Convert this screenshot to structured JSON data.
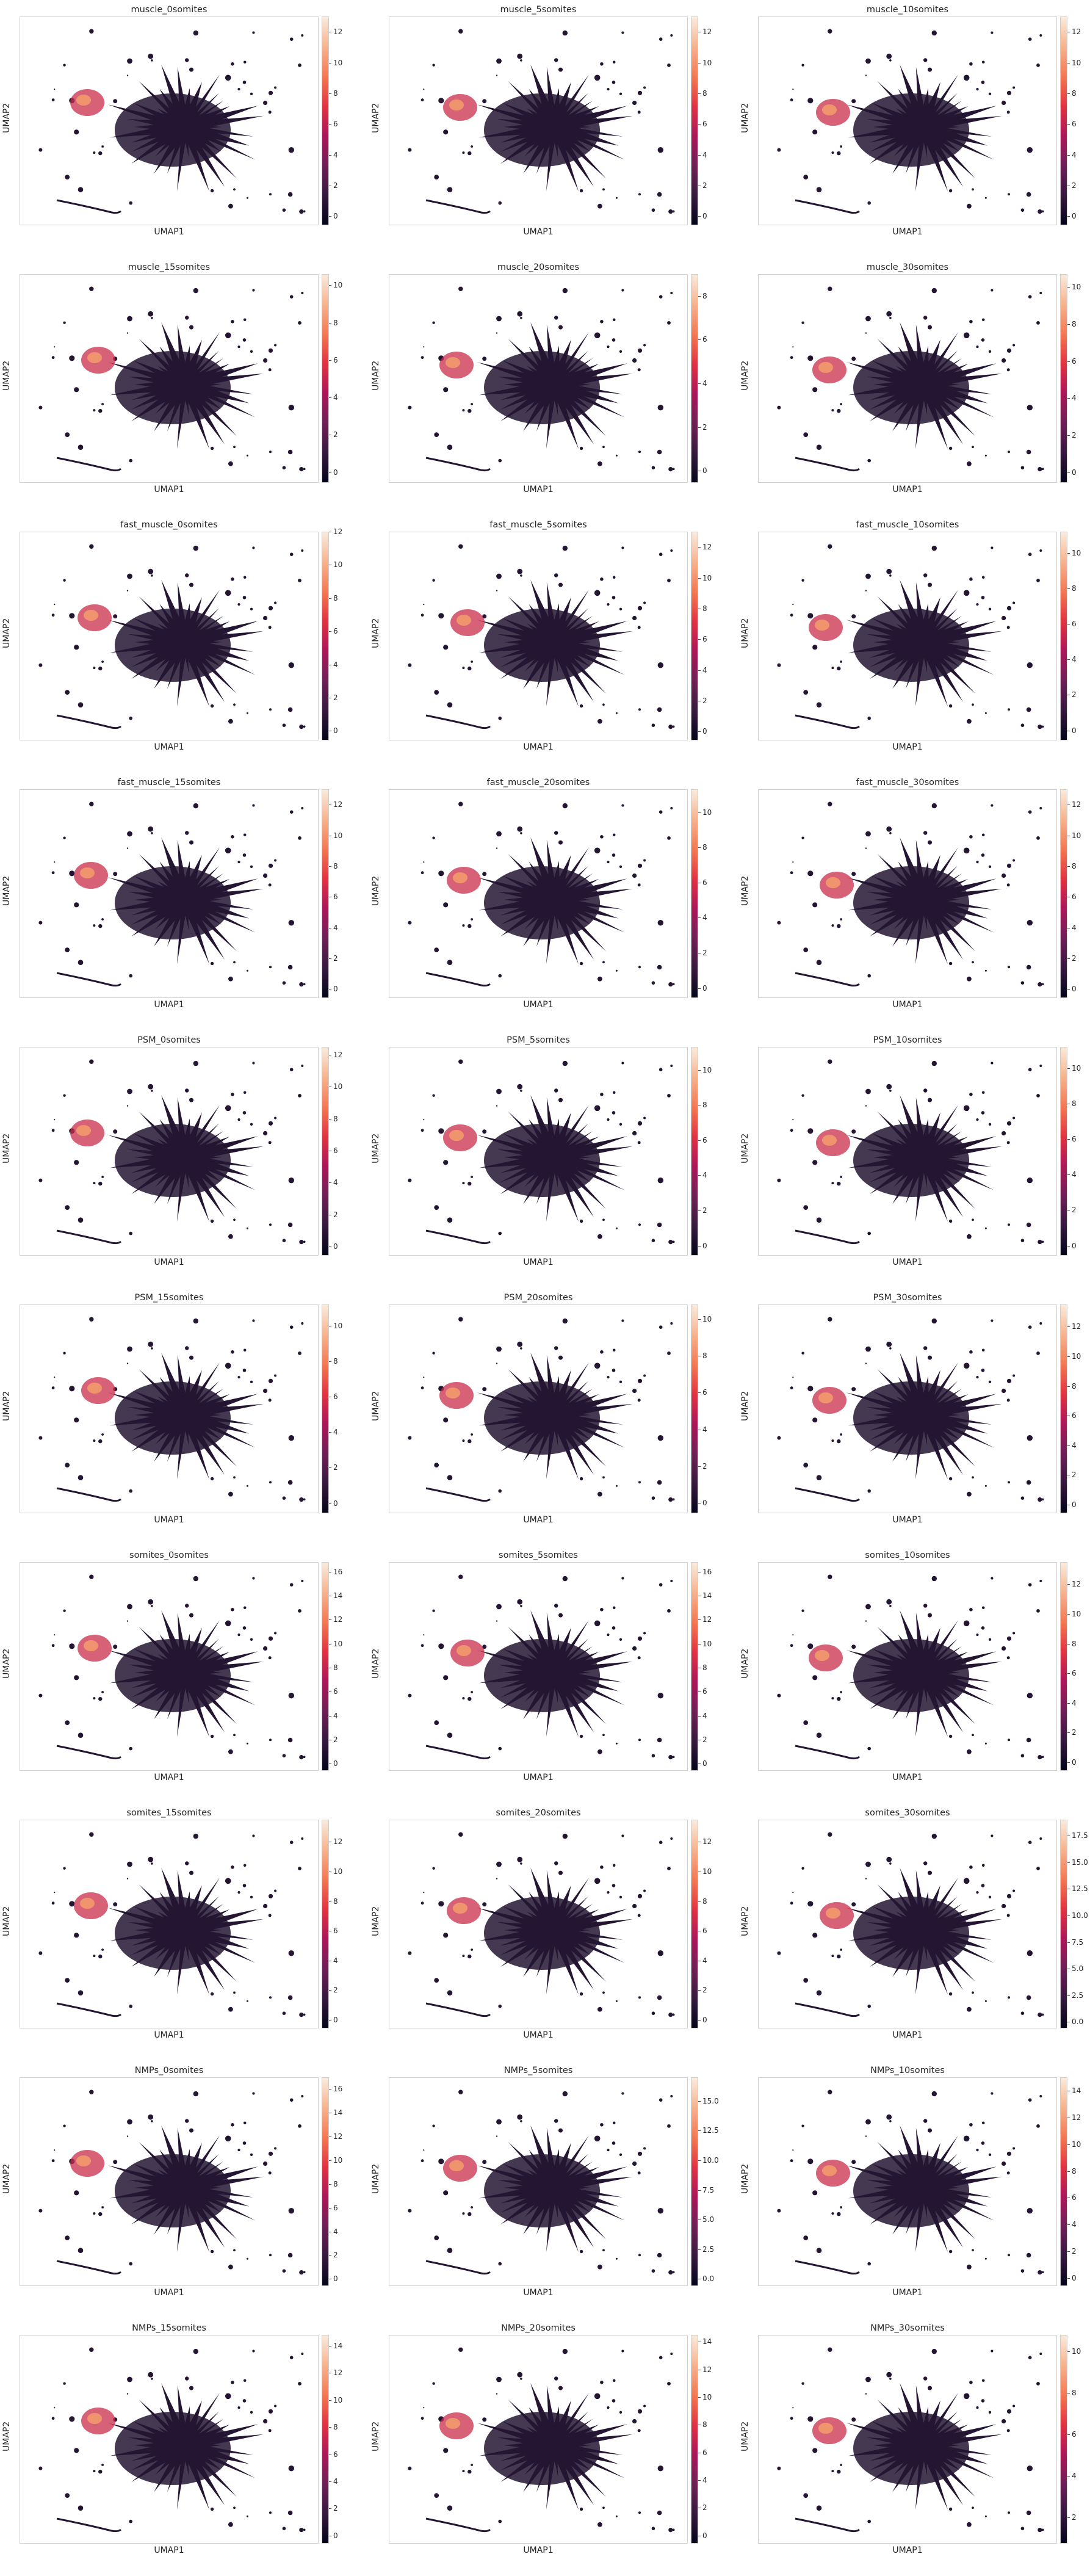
{
  "colors": {
    "cmap": [
      "#03051a",
      "#36193e",
      "#701f57",
      "#ad1759",
      "#e13342",
      "#f37651",
      "#f6b48f",
      "#faebdd"
    ],
    "background": "#ffffff",
    "frame": "#cfcfcf"
  },
  "chart_data": [
    {
      "type": "scatter",
      "title": "muscle_0somites",
      "xlabel": "UMAP1",
      "ylabel": "UMAP2",
      "colorbar_ticks": [
        "0",
        "2",
        "4",
        "6",
        "8",
        "10",
        "12"
      ],
      "vmax": 13,
      "grid": false
    },
    {
      "type": "scatter",
      "title": "muscle_5somites",
      "xlabel": "UMAP1",
      "ylabel": "UMAP2",
      "colorbar_ticks": [
        "0",
        "2",
        "4",
        "6",
        "8",
        "10",
        "12"
      ],
      "vmax": 13,
      "grid": false
    },
    {
      "type": "scatter",
      "title": "muscle_10somites",
      "xlabel": "UMAP1",
      "ylabel": "UMAP2",
      "colorbar_ticks": [
        "0",
        "2",
        "4",
        "6",
        "8",
        "10",
        "12"
      ],
      "vmax": 13,
      "grid": false
    },
    {
      "type": "scatter",
      "title": "muscle_15somites",
      "xlabel": "UMAP1",
      "ylabel": "UMAP2",
      "colorbar_ticks": [
        "0",
        "2",
        "4",
        "6",
        "8",
        "10"
      ],
      "vmax": 10.6,
      "grid": false
    },
    {
      "type": "scatter",
      "title": "muscle_20somites",
      "xlabel": "UMAP1",
      "ylabel": "UMAP2",
      "colorbar_ticks": [
        "0",
        "2",
        "4",
        "6",
        "8"
      ],
      "vmax": 9,
      "grid": false
    },
    {
      "type": "scatter",
      "title": "muscle_30somites",
      "xlabel": "UMAP1",
      "ylabel": "UMAP2",
      "colorbar_ticks": [
        "0",
        "2",
        "4",
        "6",
        "8",
        "10"
      ],
      "vmax": 10.7,
      "grid": false
    },
    {
      "type": "scatter",
      "title": "fast_muscle_0somites",
      "xlabel": "UMAP1",
      "ylabel": "UMAP2",
      "colorbar_ticks": [
        "0",
        "2",
        "4",
        "6",
        "8",
        "10",
        "12"
      ],
      "vmax": 12,
      "grid": false
    },
    {
      "type": "scatter",
      "title": "fast_muscle_5somites",
      "xlabel": "UMAP1",
      "ylabel": "UMAP2",
      "colorbar_ticks": [
        "0",
        "2",
        "4",
        "6",
        "8",
        "10",
        "12"
      ],
      "vmax": 13,
      "grid": false
    },
    {
      "type": "scatter",
      "title": "fast_muscle_10somites",
      "xlabel": "UMAP1",
      "ylabel": "UMAP2",
      "colorbar_ticks": [
        "0",
        "2",
        "4",
        "6",
        "8",
        "10"
      ],
      "vmax": 11.2,
      "grid": false
    },
    {
      "type": "scatter",
      "title": "fast_muscle_15somites",
      "xlabel": "UMAP1",
      "ylabel": "UMAP2",
      "colorbar_ticks": [
        "0",
        "2",
        "4",
        "6",
        "8",
        "10",
        "12"
      ],
      "vmax": 13,
      "grid": false
    },
    {
      "type": "scatter",
      "title": "fast_muscle_20somites",
      "xlabel": "UMAP1",
      "ylabel": "UMAP2",
      "colorbar_ticks": [
        "0",
        "2",
        "4",
        "6",
        "8",
        "10"
      ],
      "vmax": 11.3,
      "grid": false
    },
    {
      "type": "scatter",
      "title": "fast_muscle_30somites",
      "xlabel": "UMAP1",
      "ylabel": "UMAP2",
      "colorbar_ticks": [
        "0",
        "2",
        "4",
        "6",
        "8",
        "10",
        "12"
      ],
      "vmax": 13,
      "grid": false
    },
    {
      "type": "scatter",
      "title": "PSM_0somites",
      "xlabel": "UMAP1",
      "ylabel": "UMAP2",
      "colorbar_ticks": [
        "0",
        "2",
        "4",
        "6",
        "8",
        "10",
        "12"
      ],
      "vmax": 12.5,
      "grid": false
    },
    {
      "type": "scatter",
      "title": "PSM_5somites",
      "xlabel": "UMAP1",
      "ylabel": "UMAP2",
      "colorbar_ticks": [
        "0",
        "2",
        "4",
        "6",
        "8",
        "10"
      ],
      "vmax": 11.3,
      "grid": false
    },
    {
      "type": "scatter",
      "title": "PSM_10somites",
      "xlabel": "UMAP1",
      "ylabel": "UMAP2",
      "colorbar_ticks": [
        "0",
        "2",
        "4",
        "6",
        "8",
        "10"
      ],
      "vmax": 11.2,
      "grid": false
    },
    {
      "type": "scatter",
      "title": "PSM_15somites",
      "xlabel": "UMAP1",
      "ylabel": "UMAP2",
      "colorbar_ticks": [
        "0",
        "2",
        "4",
        "6",
        "8",
        "10"
      ],
      "vmax": 11.2,
      "grid": false
    },
    {
      "type": "scatter",
      "title": "PSM_20somites",
      "xlabel": "UMAP1",
      "ylabel": "UMAP2",
      "colorbar_ticks": [
        "0",
        "2",
        "4",
        "6",
        "8",
        "10"
      ],
      "vmax": 10.8,
      "grid": false
    },
    {
      "type": "scatter",
      "title": "PSM_30somites",
      "xlabel": "UMAP1",
      "ylabel": "UMAP2",
      "colorbar_ticks": [
        "0",
        "2",
        "4",
        "6",
        "8",
        "10",
        "12"
      ],
      "vmax": 13.5,
      "grid": false
    },
    {
      "type": "scatter",
      "title": "somites_0somites",
      "xlabel": "UMAP1",
      "ylabel": "UMAP2",
      "colorbar_ticks": [
        "0",
        "2",
        "4",
        "6",
        "8",
        "10",
        "12",
        "14",
        "16"
      ],
      "vmax": 16.8,
      "grid": false
    },
    {
      "type": "scatter",
      "title": "somites_5somites",
      "xlabel": "UMAP1",
      "ylabel": "UMAP2",
      "colorbar_ticks": [
        "0",
        "2",
        "4",
        "6",
        "8",
        "10",
        "12",
        "14",
        "16"
      ],
      "vmax": 16.8,
      "grid": false
    },
    {
      "type": "scatter",
      "title": "somites_10somites",
      "xlabel": "UMAP1",
      "ylabel": "UMAP2",
      "colorbar_ticks": [
        "0",
        "2",
        "4",
        "6",
        "8",
        "10",
        "12"
      ],
      "vmax": 13.5,
      "grid": false
    },
    {
      "type": "scatter",
      "title": "somites_15somites",
      "xlabel": "UMAP1",
      "ylabel": "UMAP2",
      "colorbar_ticks": [
        "0",
        "2",
        "4",
        "6",
        "8",
        "10",
        "12"
      ],
      "vmax": 13.5,
      "grid": false
    },
    {
      "type": "scatter",
      "title": "somites_20somites",
      "xlabel": "UMAP1",
      "ylabel": "UMAP2",
      "colorbar_ticks": [
        "0",
        "2",
        "4",
        "6",
        "8",
        "10",
        "12"
      ],
      "vmax": 13.5,
      "grid": false
    },
    {
      "type": "scatter",
      "title": "somites_30somites",
      "xlabel": "UMAP1",
      "ylabel": "UMAP2",
      "colorbar_ticks": [
        "0.0",
        "2.5",
        "5.0",
        "7.5",
        "10.0",
        "12.5",
        "15.0",
        "17.5"
      ],
      "vmax": 19,
      "grid": false
    },
    {
      "type": "scatter",
      "title": "NMPs_0somites",
      "xlabel": "UMAP1",
      "ylabel": "UMAP2",
      "colorbar_ticks": [
        "0",
        "2",
        "4",
        "6",
        "8",
        "10",
        "12",
        "14",
        "16"
      ],
      "vmax": 17,
      "grid": false
    },
    {
      "type": "scatter",
      "title": "NMPs_5somites",
      "xlabel": "UMAP1",
      "ylabel": "UMAP2",
      "colorbar_ticks": [
        "0.0",
        "2.5",
        "5.0",
        "7.5",
        "10.0",
        "12.5",
        "15.0"
      ],
      "vmax": 17,
      "grid": false
    },
    {
      "type": "scatter",
      "title": "NMPs_10somites",
      "xlabel": "UMAP1",
      "ylabel": "UMAP2",
      "colorbar_ticks": [
        "0",
        "2",
        "4",
        "6",
        "8",
        "10",
        "12",
        "14"
      ],
      "vmax": 15,
      "grid": false
    },
    {
      "type": "scatter",
      "title": "NMPs_15somites",
      "xlabel": "UMAP1",
      "ylabel": "UMAP2",
      "colorbar_ticks": [
        "0",
        "2",
        "4",
        "6",
        "8",
        "10",
        "12",
        "14"
      ],
      "vmax": 14.8,
      "grid": false
    },
    {
      "type": "scatter",
      "title": "NMPs_20somites",
      "xlabel": "UMAP1",
      "ylabel": "UMAP2",
      "colorbar_ticks": [
        "0",
        "2",
        "4",
        "6",
        "8",
        "10",
        "12",
        "14"
      ],
      "vmax": 14.5,
      "grid": false
    },
    {
      "type": "scatter",
      "title": "NMPs_30somites",
      "xlabel": "UMAP1",
      "ylabel": "UMAP2",
      "colorbar_ticks": [
        "2",
        "4",
        "6",
        "8",
        "10"
      ],
      "vmin": 0.8,
      "vmax": 10.8,
      "grid": false
    }
  ]
}
